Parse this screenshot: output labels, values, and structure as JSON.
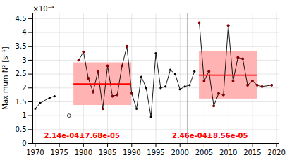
{
  "chart_data": {
    "type": "line",
    "ylabel": "Maximum N² [s⁻¹]",
    "y_scale_note": "×10⁻⁴",
    "xlim": [
      1969.5,
      2020.5
    ],
    "xticks": [
      1970,
      1975,
      1980,
      1985,
      1990,
      1995,
      2000,
      2005,
      2010,
      2015,
      2020
    ],
    "ylim": [
      0,
      0.00047
    ],
    "yticks": [
      0,
      {
        "value": 5e-05,
        "label": "0.5"
      },
      {
        "value": 0.0001,
        "label": "1"
      },
      {
        "value": 0.00015,
        "label": "1.5"
      },
      {
        "value": 0.0002,
        "label": "2"
      },
      {
        "value": 0.00025,
        "label": "2.5"
      },
      {
        "value": 0.0003,
        "label": "3"
      },
      {
        "value": 0.00035,
        "label": "3.5"
      },
      {
        "value": 0.0004,
        "label": "4"
      },
      {
        "value": 0.00045,
        "label": "4.5"
      }
    ],
    "grid": true,
    "bands": [
      {
        "x": [
          1978,
          1990
        ],
        "low": 0.0001372,
        "high": 0.0002908,
        "color": "#ffb3b3"
      },
      {
        "x": [
          2004,
          2016
        ],
        "low": 0.0001604,
        "high": 0.0003316,
        "color": "#ffb3b3"
      }
    ],
    "mean_lines": [
      {
        "x": [
          1978,
          1990
        ],
        "value": 0.000214,
        "color": "#ff0000"
      },
      {
        "x": [
          2004,
          2016
        ],
        "value": 0.000246,
        "color": "#ff0000"
      }
    ],
    "vlines": [
      {
        "x": 2001.5,
        "color": "#aaaaaa"
      }
    ],
    "series": [
      {
        "type": "line",
        "color": "#000000",
        "marker": "circle",
        "x": [
          1970,
          1971,
          1973,
          1974
        ],
        "values": [
          0.000125,
          0.000145,
          0.000165,
          0.00017
        ]
      },
      {
        "type": "line",
        "color": "#000000",
        "marker": "circle",
        "x": [
          1979,
          1980,
          1981,
          1982,
          1983,
          1984,
          1985,
          1986,
          1987,
          1988,
          1989,
          1990
        ],
        "values": [
          0.0003,
          0.00033,
          0.000235,
          0.000185,
          0.00026,
          0.000125,
          0.00028,
          0.00017,
          0.000175,
          0.00028,
          0.00035,
          0.00018
        ]
      },
      {
        "type": "line",
        "color": "#000000",
        "marker": "circle",
        "x": [
          1990,
          1991,
          1992,
          1993,
          1994,
          1995,
          1996,
          1997,
          1998,
          1999,
          2000,
          2001,
          2002,
          2003
        ],
        "values": [
          0.00018,
          0.000125,
          0.00024,
          0.0002,
          9.5e-05,
          0.000325,
          0.0002,
          0.000205,
          0.000265,
          0.00025,
          0.000195,
          0.000205,
          0.00021,
          0.00026
        ]
      },
      {
        "type": "line",
        "color": "#000000",
        "marker": "circle",
        "x": [
          2004,
          2005,
          2006,
          2007,
          2008,
          2009,
          2010,
          2011,
          2012,
          2013,
          2014,
          2015,
          2016,
          2017,
          2019
        ],
        "values": [
          0.000435,
          0.000225,
          0.00026,
          0.000135,
          0.00018,
          0.000175,
          0.000425,
          0.000225,
          0.00031,
          0.000305,
          0.00021,
          0.000225,
          0.00021,
          0.000205,
          0.00021
        ]
      },
      {
        "type": "scatter",
        "color": "#000000",
        "marker": "hollow",
        "x": [
          1977
        ],
        "values": [
          0.0001
        ]
      },
      {
        "type": "scatter",
        "color": "#8b0000",
        "marker": "circle",
        "x": [
          1979,
          1980,
          1981,
          1982,
          1983,
          1984,
          1985,
          1986,
          1987,
          1988,
          1989,
          1990
        ],
        "values": [
          0.0003,
          0.00033,
          0.000235,
          0.000185,
          0.00026,
          0.000125,
          0.00028,
          0.00017,
          0.000175,
          0.00028,
          0.00035,
          0.00018
        ]
      },
      {
        "type": "scatter",
        "color": "#8b0000",
        "marker": "circle",
        "x": [
          2004,
          2005,
          2006,
          2007,
          2008,
          2009,
          2010,
          2011,
          2012,
          2013,
          2014,
          2015,
          2016,
          2017,
          2019
        ],
        "values": [
          0.000435,
          0.000225,
          0.00026,
          0.000135,
          0.00018,
          0.000175,
          0.000425,
          0.000225,
          0.00031,
          0.000305,
          0.00021,
          0.000225,
          0.00021,
          0.000205,
          0.00021
        ]
      }
    ],
    "annotations": [
      {
        "text": "2.14e-04±7.68e-05",
        "color": "#ff0000"
      },
      {
        "text": "2.46e-04±8.56e-05",
        "color": "#ff0000"
      }
    ]
  }
}
